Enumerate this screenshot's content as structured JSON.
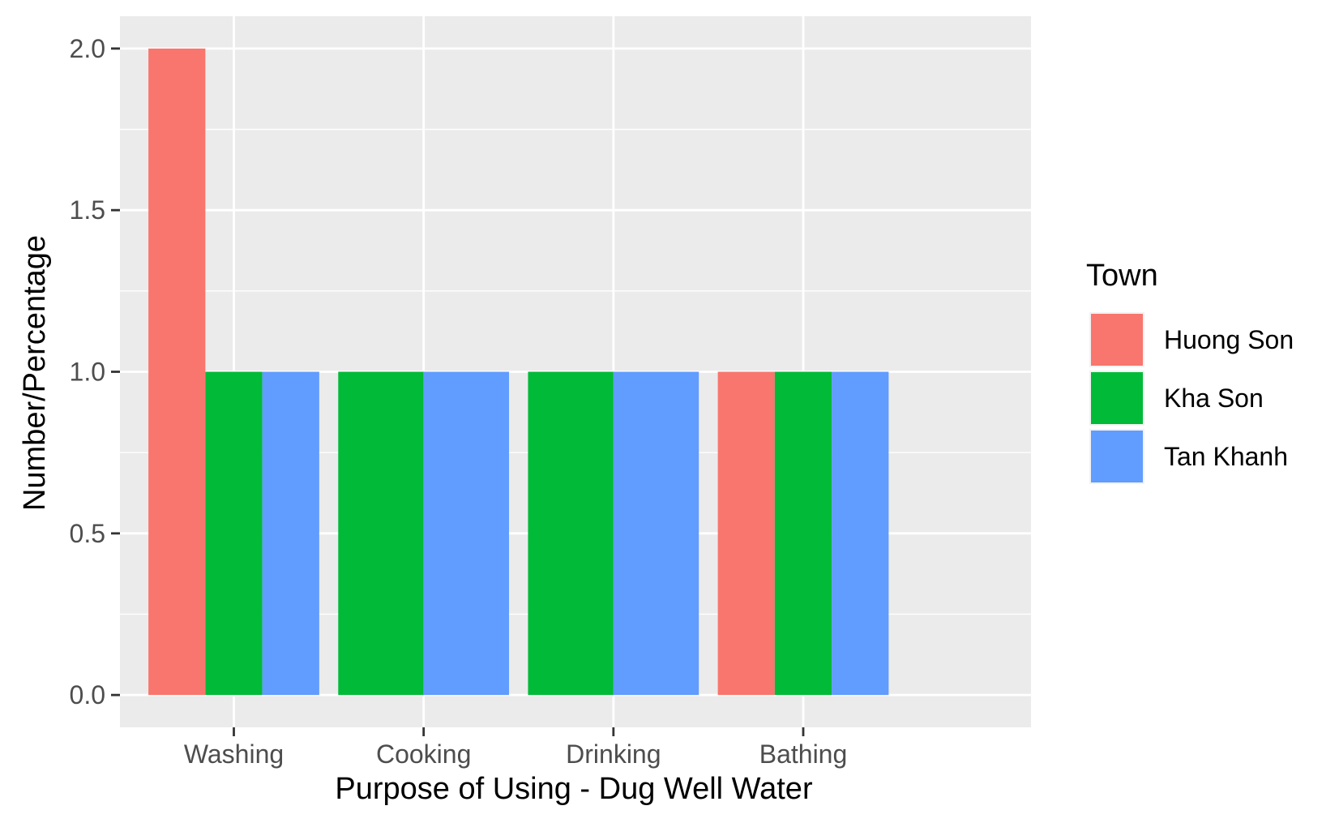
{
  "chart_data": {
    "type": "bar",
    "xlabel": "Purpose of Using - Dug Well Water",
    "ylabel": "Number/Percentage",
    "categories": [
      "Washing",
      "Cooking",
      "Drinking",
      "Bathing"
    ],
    "series": [
      {
        "name": "Huong Son",
        "color": "#F8766D",
        "values": [
          2,
          null,
          null,
          1
        ]
      },
      {
        "name": "Kha Son",
        "color": "#00BA38",
        "values": [
          1,
          1,
          1,
          1
        ]
      },
      {
        "name": "Tan Khanh",
        "color": "#619CFF",
        "values": [
          1,
          1,
          1,
          1
        ]
      }
    ],
    "ylim": [
      -0.1,
      2.1
    ],
    "yticks": [
      0.0,
      0.5,
      1.0,
      1.5,
      2.0
    ],
    "ytick_labels": [
      "0.0",
      "0.5",
      "1.0",
      "1.5",
      "2.0"
    ],
    "grid": true,
    "legend": {
      "title": "Town",
      "position": "right"
    },
    "panel_background": "#EBEBEB",
    "grid_color": "#FFFFFF"
  }
}
